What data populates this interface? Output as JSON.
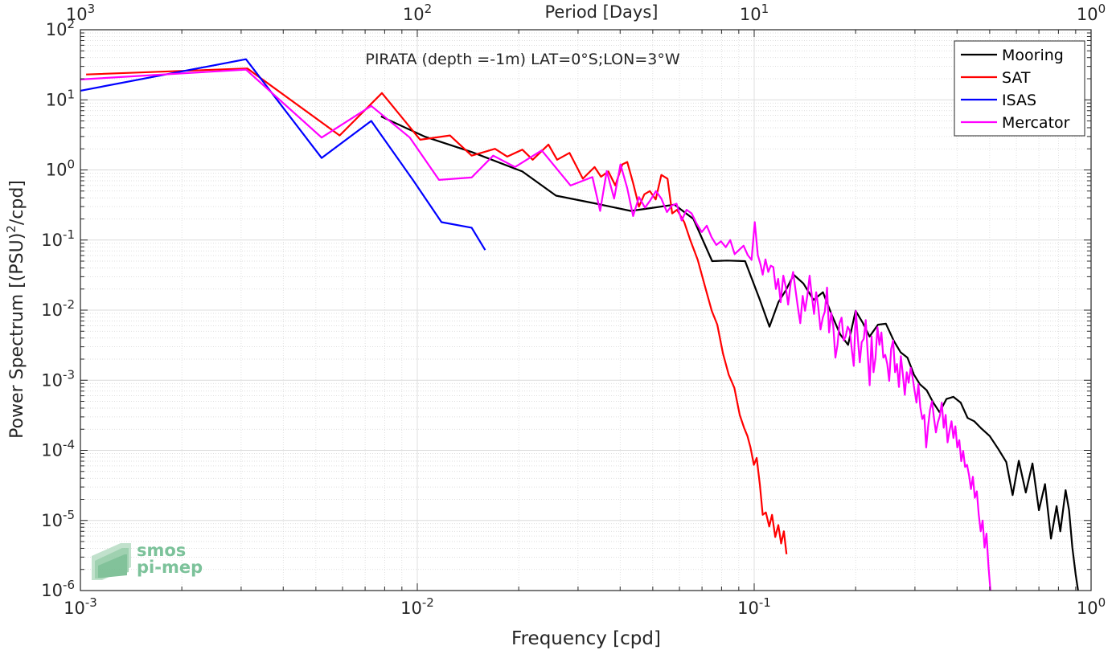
{
  "chart_data": {
    "type": "line",
    "title": "PIRATA (depth =-1m) LAT=0°S;LON=3°W",
    "xlabel": "Frequency [cpd]",
    "ylabel": "Power Spectrum [(PSU)",
    "ylabel_sup": "2",
    "ylabel_tail": "/cpd]",
    "top_axis_label": "Period [Days]",
    "x_scale": "log",
    "y_scale": "log",
    "xlim": [
      0.001,
      1
    ],
    "ylim": [
      1e-06,
      100
    ],
    "grid": true,
    "legend_position": "top-right",
    "bottom_ticks": [
      {
        "v": 0.001,
        "b": "10",
        "e": "-3"
      },
      {
        "v": 0.01,
        "b": "10",
        "e": "-2"
      },
      {
        "v": 0.1,
        "b": "10",
        "e": "-1"
      },
      {
        "v": 1,
        "b": "10",
        "e": "0"
      }
    ],
    "top_ticks": [
      {
        "v": 0.001,
        "b": "10",
        "e": "3"
      },
      {
        "v": 0.01,
        "b": "10",
        "e": "2"
      },
      {
        "v": 0.1,
        "b": "10",
        "e": "1"
      },
      {
        "v": 1,
        "b": "10",
        "e": "0"
      }
    ],
    "left_ticks": [
      {
        "v": 100,
        "b": "10",
        "e": "2"
      },
      {
        "v": 10,
        "b": "10",
        "e": "1"
      },
      {
        "v": 1,
        "b": "10",
        "e": "0"
      },
      {
        "v": 0.1,
        "b": "10",
        "e": "-1"
      },
      {
        "v": 0.01,
        "b": "10",
        "e": "-2"
      },
      {
        "v": 0.001,
        "b": "10",
        "e": "-3"
      },
      {
        "v": 0.0001,
        "b": "10",
        "e": "-4"
      },
      {
        "v": 1e-05,
        "b": "10",
        "e": "-5"
      },
      {
        "v": 1e-06,
        "b": "10",
        "e": "-6"
      }
    ],
    "series": [
      {
        "name": "Mooring",
        "color": "#000000",
        "points": [
          [
            0.0078,
            5.8
          ],
          [
            0.0105,
            3.0
          ],
          [
            0.0145,
            1.8
          ],
          [
            0.0205,
            0.95
          ],
          [
            0.0258,
            0.43
          ],
          [
            0.034,
            0.33
          ],
          [
            0.043,
            0.26
          ],
          [
            0.0505,
            0.29
          ],
          [
            0.058,
            0.32
          ],
          [
            0.066,
            0.2
          ],
          [
            0.075,
            0.05
          ],
          [
            0.083,
            0.051
          ],
          [
            0.094,
            0.05
          ],
          [
            0.104,
            0.014
          ],
          [
            0.111,
            0.0058
          ],
          [
            0.118,
            0.013
          ],
          [
            0.124,
            0.019
          ],
          [
            0.131,
            0.032
          ],
          [
            0.14,
            0.024
          ],
          [
            0.15,
            0.014
          ],
          [
            0.16,
            0.018
          ],
          [
            0.17,
            0.0085
          ],
          [
            0.18,
            0.0045
          ],
          [
            0.19,
            0.0032
          ],
          [
            0.2,
            0.0098
          ],
          [
            0.21,
            0.0066
          ],
          [
            0.22,
            0.0042
          ],
          [
            0.233,
            0.0062
          ],
          [
            0.246,
            0.0064
          ],
          [
            0.26,
            0.0036
          ],
          [
            0.272,
            0.0025
          ],
          [
            0.285,
            0.0021
          ],
          [
            0.298,
            0.0012
          ],
          [
            0.31,
            0.00088
          ],
          [
            0.325,
            0.00072
          ],
          [
            0.34,
            0.00048
          ],
          [
            0.355,
            0.00035
          ],
          [
            0.372,
            0.00054
          ],
          [
            0.39,
            0.00058
          ],
          [
            0.41,
            0.00048
          ],
          [
            0.43,
            0.00029
          ],
          [
            0.45,
            0.00026
          ],
          [
            0.47,
            0.00021
          ],
          [
            0.5,
            0.00016
          ],
          [
            0.53,
            0.000105
          ],
          [
            0.56,
            6.8e-05
          ],
          [
            0.585,
            2.3e-05
          ],
          [
            0.61,
            7.1e-05
          ],
          [
            0.64,
            2.5e-05
          ],
          [
            0.67,
            6.5e-05
          ],
          [
            0.7,
            1.4e-05
          ],
          [
            0.73,
            3.3e-05
          ],
          [
            0.76,
            5.5e-06
          ],
          [
            0.79,
            1.6e-05
          ],
          [
            0.81,
            7e-06
          ],
          [
            0.84,
            2.7e-05
          ],
          [
            0.86,
            1.4e-05
          ],
          [
            0.88,
            4.1e-06
          ],
          [
            0.9,
            1.7e-06
          ],
          [
            0.915,
            1e-06
          ]
        ]
      },
      {
        "name": "SAT",
        "color": "#ff0000",
        "points": [
          [
            0.00104,
            23
          ],
          [
            0.00313,
            28
          ],
          [
            0.00588,
            3.1
          ],
          [
            0.00785,
            12.5
          ],
          [
            0.0102,
            2.7
          ],
          [
            0.0125,
            3.1
          ],
          [
            0.0145,
            1.6
          ],
          [
            0.0158,
            1.8
          ],
          [
            0.017,
            2.0
          ],
          [
            0.0185,
            1.55
          ],
          [
            0.0205,
            1.95
          ],
          [
            0.022,
            1.4
          ],
          [
            0.0245,
            2.3
          ],
          [
            0.026,
            1.4
          ],
          [
            0.0283,
            1.75
          ],
          [
            0.031,
            0.75
          ],
          [
            0.0336,
            1.1
          ],
          [
            0.0351,
            0.8
          ],
          [
            0.0369,
            0.95
          ],
          [
            0.0387,
            0.6
          ],
          [
            0.0406,
            1.2
          ],
          [
            0.042,
            1.3
          ],
          [
            0.0437,
            0.65
          ],
          [
            0.0455,
            0.3
          ],
          [
            0.0472,
            0.45
          ],
          [
            0.049,
            0.5
          ],
          [
            0.051,
            0.38
          ],
          [
            0.053,
            0.85
          ],
          [
            0.0553,
            0.75
          ],
          [
            0.0571,
            0.24
          ],
          [
            0.059,
            0.27
          ],
          [
            0.062,
            0.18
          ],
          [
            0.0646,
            0.1
          ],
          [
            0.068,
            0.052
          ],
          [
            0.0716,
            0.021
          ],
          [
            0.0748,
            0.0098
          ],
          [
            0.0777,
            0.0062
          ],
          [
            0.0808,
            0.0024
          ],
          [
            0.084,
            0.0012
          ],
          [
            0.0873,
            0.00078
          ],
          [
            0.0906,
            0.00032
          ],
          [
            0.0933,
            0.00021
          ],
          [
            0.0955,
            0.00016
          ],
          [
            0.0975,
            0.00011
          ],
          [
            0.0998,
            6.2e-05
          ],
          [
            0.1017,
            7.8e-05
          ],
          [
            0.104,
            3.2e-05
          ],
          [
            0.106,
            1.2e-05
          ],
          [
            0.1083,
            1.3e-05
          ],
          [
            0.1108,
            8.2e-06
          ],
          [
            0.113,
            1.2e-05
          ],
          [
            0.1155,
            5.8e-06
          ],
          [
            0.1179,
            8.6e-06
          ],
          [
            0.1202,
            4.7e-06
          ],
          [
            0.1225,
            7e-06
          ],
          [
            0.1247,
            3.3e-06
          ]
        ]
      },
      {
        "name": "ISAS",
        "color": "#0000ff",
        "points": [
          [
            0.001,
            13.5
          ],
          [
            0.0031,
            38
          ],
          [
            0.0052,
            1.48
          ],
          [
            0.0073,
            5.0
          ],
          [
            0.0097,
            0.72
          ],
          [
            0.0118,
            0.18
          ],
          [
            0.0145,
            0.15
          ],
          [
            0.0159,
            0.072
          ]
        ]
      },
      {
        "name": "Mercator",
        "color": "#ff00ff",
        "points": [
          [
            0.001,
            19.5
          ],
          [
            0.0031,
            27
          ],
          [
            0.0052,
            2.9
          ],
          [
            0.0073,
            8.2
          ],
          [
            0.0095,
            2.9
          ],
          [
            0.0116,
            0.72
          ],
          [
            0.0145,
            0.78
          ],
          [
            0.0168,
            1.6
          ],
          [
            0.0195,
            1.1
          ],
          [
            0.0234,
            1.9
          ],
          [
            0.0285,
            0.6
          ],
          [
            0.0331,
            0.79
          ],
          [
            0.0349,
            0.26
          ],
          [
            0.0365,
            0.96
          ],
          [
            0.0384,
            0.39
          ],
          [
            0.0401,
            1.2
          ],
          [
            0.042,
            0.55
          ],
          [
            0.0437,
            0.22
          ],
          [
            0.0455,
            0.41
          ],
          [
            0.0474,
            0.29
          ],
          [
            0.049,
            0.36
          ],
          [
            0.0511,
            0.5
          ],
          [
            0.053,
            0.39
          ],
          [
            0.0551,
            0.25
          ],
          [
            0.0569,
            0.31
          ],
          [
            0.0588,
            0.33
          ],
          [
            0.0609,
            0.19
          ],
          [
            0.063,
            0.27
          ],
          [
            0.0652,
            0.24
          ],
          [
            0.0675,
            0.17
          ],
          [
            0.0699,
            0.13
          ],
          [
            0.0723,
            0.16
          ],
          [
            0.0747,
            0.11
          ],
          [
            0.0772,
            0.085
          ],
          [
            0.0797,
            0.096
          ],
          [
            0.0823,
            0.079
          ],
          [
            0.0849,
            0.1
          ],
          [
            0.0875,
            0.063
          ],
          [
            0.0901,
            0.072
          ],
          [
            0.093,
            0.083
          ],
          [
            0.0957,
            0.061
          ],
          [
            0.0982,
            0.052
          ],
          [
            0.1004,
            0.18
          ],
          [
            0.1025,
            0.061
          ],
          [
            0.1044,
            0.045
          ],
          [
            0.106,
            0.032
          ],
          [
            0.108,
            0.053
          ],
          [
            0.1101,
            0.035
          ],
          [
            0.112,
            0.043
          ],
          [
            0.114,
            0.041
          ],
          [
            0.116,
            0.02
          ],
          [
            0.1178,
            0.028
          ],
          [
            0.1198,
            0.013
          ],
          [
            0.122,
            0.031
          ],
          [
            0.124,
            0.022
          ],
          [
            0.1261,
            0.012
          ],
          [
            0.1283,
            0.024
          ],
          [
            0.1305,
            0.035
          ],
          [
            0.1327,
            0.019
          ],
          [
            0.1348,
            0.011
          ],
          [
            0.137,
            0.0065
          ],
          [
            0.1393,
            0.016
          ],
          [
            0.1415,
            0.0098
          ],
          [
            0.1438,
            0.016
          ],
          [
            0.146,
            0.031
          ],
          [
            0.1483,
            0.016
          ],
          [
            0.1505,
            0.0088
          ],
          [
            0.1528,
            0.018
          ],
          [
            0.155,
            0.011
          ],
          [
            0.1574,
            0.0053
          ],
          [
            0.1598,
            0.0078
          ],
          [
            0.162,
            0.0095
          ],
          [
            0.1645,
            0.021
          ],
          [
            0.1668,
            0.0048
          ],
          [
            0.1693,
            0.0092
          ],
          [
            0.1716,
            0.006
          ],
          [
            0.1742,
            0.0021
          ],
          [
            0.1767,
            0.0032
          ],
          [
            0.1792,
            0.0065
          ],
          [
            0.1817,
            0.0078
          ],
          [
            0.1843,
            0.0037
          ],
          [
            0.1868,
            0.0042
          ],
          [
            0.1895,
            0.0058
          ],
          [
            0.1922,
            0.0051
          ],
          [
            0.1948,
            0.0028
          ],
          [
            0.1975,
            0.0016
          ],
          [
            0.2003,
            0.0098
          ],
          [
            0.203,
            0.0041
          ],
          [
            0.2058,
            0.0018
          ],
          [
            0.2085,
            0.0035
          ],
          [
            0.2115,
            0.0039
          ],
          [
            0.2143,
            0.0072
          ],
          [
            0.2172,
            0.0025
          ],
          [
            0.2201,
            0.00085
          ],
          [
            0.2231,
            0.0042
          ],
          [
            0.226,
            0.0013
          ],
          [
            0.2291,
            0.0021
          ],
          [
            0.2322,
            0.0057
          ],
          [
            0.2354,
            0.0032
          ],
          [
            0.2385,
            0.0048
          ],
          [
            0.2417,
            0.0021
          ],
          [
            0.2449,
            0.0023
          ],
          [
            0.2483,
            0.0017
          ],
          [
            0.2516,
            0.00098
          ],
          [
            0.255,
            0.0028
          ],
          [
            0.2584,
            0.0037
          ],
          [
            0.2619,
            0.0013
          ],
          [
            0.2654,
            0.0017
          ],
          [
            0.2689,
            0.0008
          ],
          [
            0.2725,
            0.0022
          ],
          [
            0.2762,
            0.0012
          ],
          [
            0.2799,
            0.00062
          ],
          [
            0.2836,
            0.0013
          ],
          [
            0.2874,
            0.00092
          ],
          [
            0.2913,
            0.0015
          ],
          [
            0.2952,
            0.0011
          ],
          [
            0.2992,
            0.00072
          ],
          [
            0.3032,
            0.00048
          ],
          [
            0.3072,
            0.00088
          ],
          [
            0.3113,
            0.00041
          ],
          [
            0.3155,
            0.00028
          ],
          [
            0.3197,
            0.00032
          ],
          [
            0.324,
            0.00011
          ],
          [
            0.3283,
            0.00022
          ],
          [
            0.3327,
            0.00038
          ],
          [
            0.3371,
            0.0005
          ],
          [
            0.3417,
            0.00029
          ],
          [
            0.3462,
            0.00018
          ],
          [
            0.3509,
            0.00025
          ],
          [
            0.3556,
            0.00031
          ],
          [
            0.3604,
            0.00048
          ],
          [
            0.3652,
            0.00021
          ],
          [
            0.3701,
            0.00032
          ],
          [
            0.375,
            0.00013
          ],
          [
            0.38,
            0.00019
          ],
          [
            0.3851,
            0.00026
          ],
          [
            0.3903,
            0.00015
          ],
          [
            0.3955,
            0.00022
          ],
          [
            0.4008,
            0.00011
          ],
          [
            0.4062,
            0.00014
          ],
          [
            0.4116,
            7e-05
          ],
          [
            0.4171,
            9.8e-05
          ],
          [
            0.4227,
            5.8e-05
          ],
          [
            0.4284,
            6.2e-05
          ],
          [
            0.4342,
            4.4e-05
          ],
          [
            0.44,
            2.8e-05
          ],
          [
            0.4459,
            4.2e-05
          ],
          [
            0.4518,
            2.1e-05
          ],
          [
            0.4579,
            2.6e-05
          ],
          [
            0.464,
            1.2e-05
          ],
          [
            0.4702,
            7e-06
          ],
          [
            0.4765,
            1e-05
          ],
          [
            0.4829,
            4.1e-06
          ],
          [
            0.4893,
            6.5e-06
          ],
          [
            0.4959,
            2.2e-06
          ],
          [
            0.5025,
            1e-06
          ]
        ]
      }
    ]
  },
  "watermark": {
    "line1": "smos",
    "line2": "pi-mep"
  }
}
